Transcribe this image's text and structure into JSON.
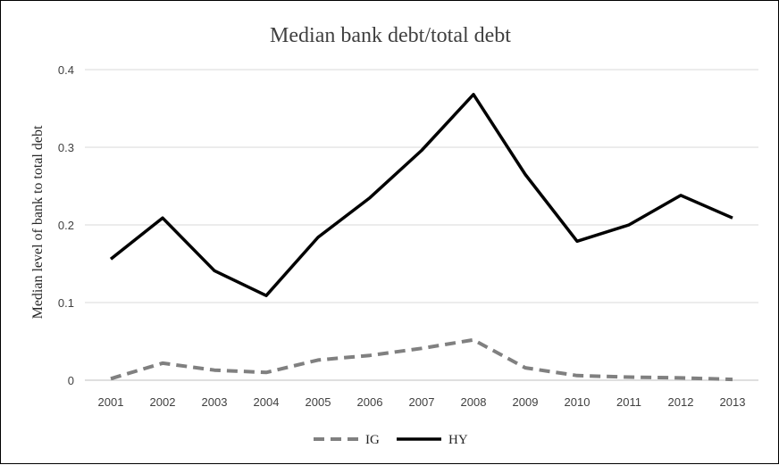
{
  "chart_data": {
    "type": "line",
    "title": "Median bank debt/total debt",
    "xlabel": "",
    "ylabel": "Median level of bank to total debt",
    "categories": [
      "2001",
      "2002",
      "2003",
      "2004",
      "2005",
      "2006",
      "2007",
      "2008",
      "2009",
      "2010",
      "2011",
      "2012",
      "2013"
    ],
    "ylim": [
      0,
      0.4
    ],
    "yticks": [
      "0",
      "0.1",
      "0.2",
      "0.3",
      "0.4"
    ],
    "grid": true,
    "legend": "bottom",
    "series": [
      {
        "name": "IG",
        "style": "dashed",
        "color": "#808080",
        "values": [
          0.002,
          0.022,
          0.013,
          0.01,
          0.026,
          0.032,
          0.041,
          0.052,
          0.016,
          0.006,
          0.004,
          0.003,
          0.001
        ]
      },
      {
        "name": "HY",
        "style": "solid",
        "color": "#000000",
        "values": [
          0.156,
          0.209,
          0.141,
          0.109,
          0.184,
          0.235,
          0.296,
          0.368,
          0.265,
          0.179,
          0.2,
          0.238,
          0.209
        ]
      }
    ]
  }
}
